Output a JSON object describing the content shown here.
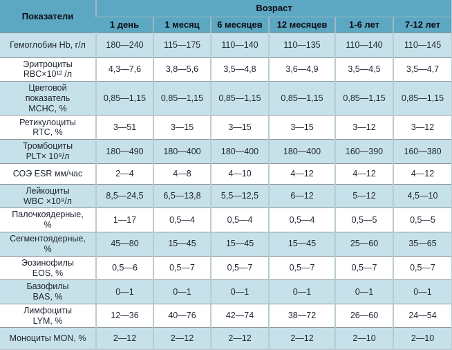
{
  "table": {
    "corner_header": "Показатели",
    "group_header": "Возраст",
    "age_columns": [
      "1 день",
      "1 месяц",
      "6 месяцев",
      "12 месяцев",
      "1-6 лет",
      "7-12 лет"
    ],
    "rows": [
      {
        "label": "Гемоглобин Hb, г/л",
        "values": [
          "180—240",
          "115—175",
          "110—140",
          "110—135",
          "110—140",
          "110—145"
        ]
      },
      {
        "label": "Эритроциты\nRBC×10¹² /л",
        "values": [
          "4,3—7,6",
          "3,8—5,6",
          "3,5—4,8",
          "3,6—4,9",
          "3,5—4,5",
          "3,5—4,7"
        ]
      },
      {
        "label": "Цветовой\nпоказатель\nMCHC, %",
        "values": [
          "0,85—1,15",
          "0,85—1,15",
          "0,85—1,15",
          "0,85—1,15",
          "0,85—1,15",
          "0,85—1,15"
        ]
      },
      {
        "label": "Ретикулоциты\nRTC, %",
        "values": [
          "3—51",
          "3—15",
          "3—15",
          "3—15",
          "3—12",
          "3—12"
        ]
      },
      {
        "label": "Тромбоциты\nPLT× 10⁹/л",
        "values": [
          "180—490",
          "180—400",
          "180—400",
          "180—400",
          "160—390",
          "160—380"
        ]
      },
      {
        "label": "СОЭ ESR мм/час",
        "values": [
          "2—4",
          "4—8",
          "4—10",
          "4—12",
          "4—12",
          "4—12"
        ]
      },
      {
        "label": "Лейкоциты\nWBC ×10⁹/л",
        "values": [
          "8,5—24,5",
          "6,5—13,8",
          "5,5—12,5",
          "6—12",
          "5—12",
          "4,5—10"
        ]
      },
      {
        "label": "Палочкоядерные,\n%",
        "values": [
          "1—17",
          "0,5—4",
          "0,5—4",
          "0,5—4",
          "0,5—5",
          "0,5—5"
        ]
      },
      {
        "label": "Сегментоядерные,\n%",
        "values": [
          "45—80",
          "15—45",
          "15—45",
          "15—45",
          "25—60",
          "35—65"
        ]
      },
      {
        "label": "Эозинофилы\nEOS, %",
        "values": [
          "0,5—6",
          "0,5—7",
          "0,5—7",
          "0,5—7",
          "0,5—7",
          "0,5—7"
        ]
      },
      {
        "label": "Базофилы\nBAS, %",
        "values": [
          "0—1",
          "0—1",
          "0—1",
          "0—1",
          "0—1",
          "0—1"
        ]
      },
      {
        "label": "Лимфоциты\nLYM, %",
        "values": [
          "12—36",
          "40—76",
          "42—74",
          "38—72",
          "26—60",
          "24—54"
        ]
      },
      {
        "label": "Моноциты MON, %",
        "values": [
          "2—12",
          "2—12",
          "2—12",
          "2—12",
          "2—10",
          "2—10"
        ]
      }
    ]
  },
  "colors": {
    "header_bg": "#5ca7c2",
    "header_text": "#0d0d12",
    "row_alt_bg": "#c7e1ea",
    "row_bg": "#ffffff",
    "text": "#1d2430",
    "grid_horizontal": "#8f979b",
    "grid_vertical": "#b9cbd2",
    "header_grid": "#9fbac6"
  }
}
